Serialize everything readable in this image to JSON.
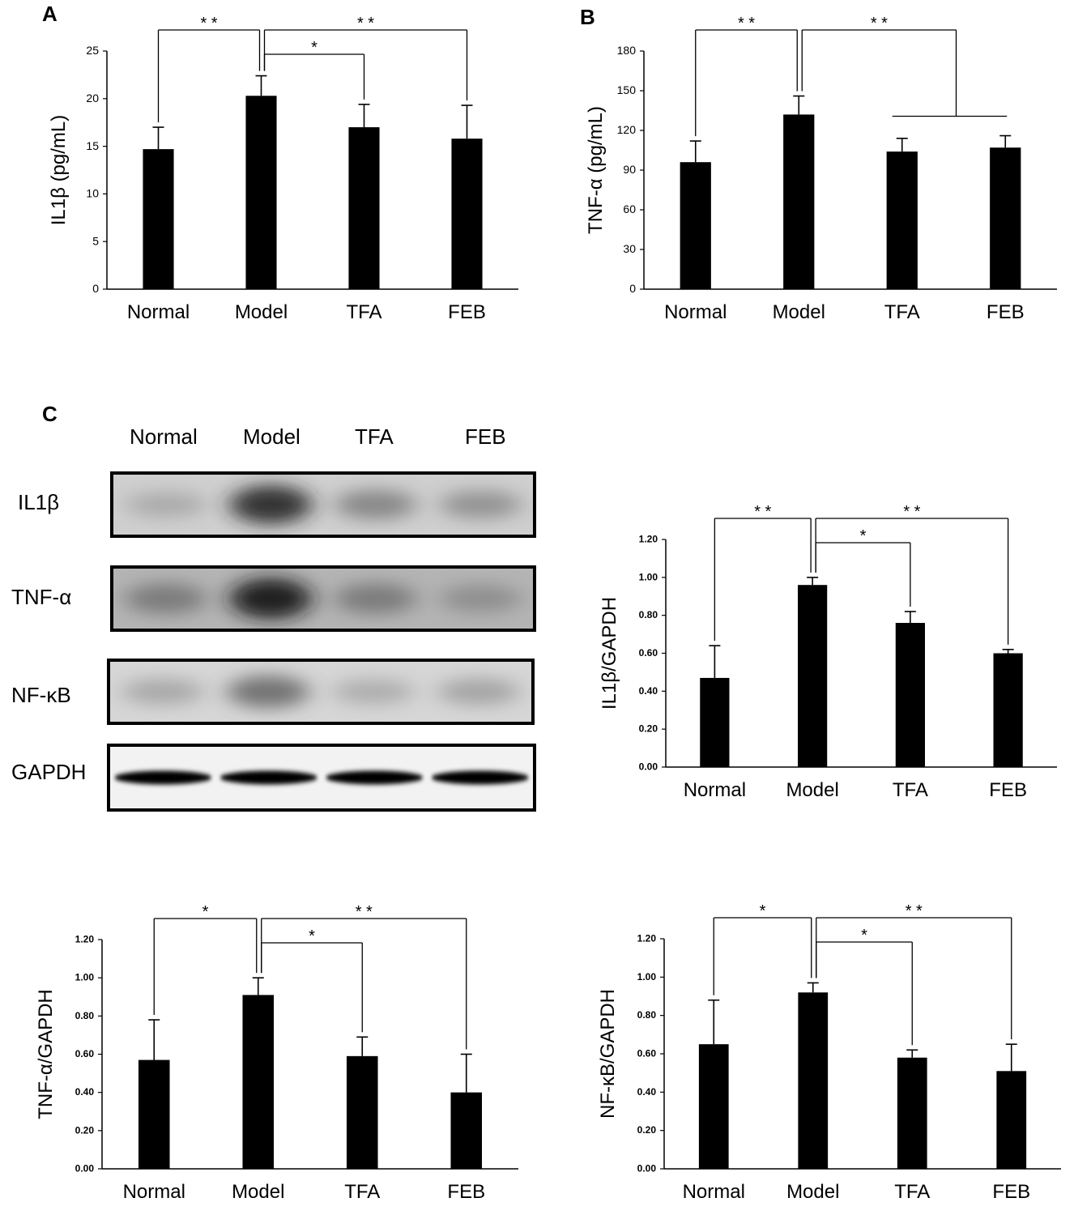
{
  "panels": {
    "a": "A",
    "b": "B",
    "c": "C"
  },
  "blot": {
    "lanes": [
      "Normal",
      "Model",
      "TFA",
      "FEB"
    ],
    "rows": [
      {
        "label": "IL1β",
        "intensity": [
          0.18,
          0.85,
          0.42,
          0.35
        ],
        "bg": "#cfcfcf"
      },
      {
        "label": "TNF-α",
        "intensity": [
          0.45,
          0.95,
          0.45,
          0.32
        ],
        "bg": "#b4b4b4"
      },
      {
        "label": "NF-κB",
        "intensity": [
          0.22,
          0.55,
          0.18,
          0.25
        ],
        "bg": "#d6d6d6"
      },
      {
        "label": "GAPDH",
        "intensity": [
          1.0,
          1.0,
          1.0,
          1.0
        ],
        "bg": "#f2f2f2"
      }
    ]
  },
  "chart_data": [
    {
      "id": "A",
      "type": "bar",
      "categories": [
        "Normal",
        "Model",
        "TFA",
        "FEB"
      ],
      "values": [
        14.7,
        20.3,
        17.0,
        15.8
      ],
      "errors": [
        2.3,
        2.1,
        2.4,
        3.5
      ],
      "ylabel": "IL1β  (pg/mL)",
      "ylim": [
        0,
        25
      ],
      "yticks": [
        "0",
        "5",
        "10",
        "15",
        "20",
        "25"
      ],
      "significance": [
        {
          "from": 1,
          "to": [
            0
          ],
          "label": "* *"
        },
        {
          "from": 1,
          "to": [
            2
          ],
          "label": "*"
        },
        {
          "from": 1,
          "to": [
            3
          ],
          "label": "* *"
        }
      ]
    },
    {
      "id": "B",
      "type": "bar",
      "categories": [
        "Normal",
        "Model",
        "TFA",
        "FEB"
      ],
      "values": [
        96,
        132,
        104,
        107
      ],
      "errors": [
        16,
        14,
        10,
        9
      ],
      "ylabel": "TNF-α  (pg/mL)",
      "ylim": [
        0,
        180
      ],
      "yticks": [
        "0",
        "30",
        "60",
        "90",
        "120",
        "150",
        "180"
      ],
      "significance": [
        {
          "from": 1,
          "to": [
            0
          ],
          "label": "* *"
        },
        {
          "from": 1,
          "to": [
            2,
            3
          ],
          "label": "* *"
        }
      ]
    },
    {
      "id": "C-IL1b",
      "type": "bar",
      "categories": [
        "Normal",
        "Model",
        "TFA",
        "FEB"
      ],
      "values": [
        0.47,
        0.96,
        0.76,
        0.6
      ],
      "errors": [
        0.17,
        0.04,
        0.06,
        0.02
      ],
      "ylabel": "IL1β/GAPDH",
      "ylim": [
        0,
        1.2
      ],
      "yticks": [
        "0.00",
        "0.20",
        "0.40",
        "0.60",
        "0.80",
        "1.00",
        "1.20"
      ],
      "significance": [
        {
          "from": 1,
          "to": [
            0
          ],
          "label": "* *"
        },
        {
          "from": 1,
          "to": [
            2
          ],
          "label": "*"
        },
        {
          "from": 1,
          "to": [
            3
          ],
          "label": "* *"
        }
      ]
    },
    {
      "id": "C-TNFa",
      "type": "bar",
      "categories": [
        "Normal",
        "Model",
        "TFA",
        "FEB"
      ],
      "values": [
        0.57,
        0.91,
        0.59,
        0.4
      ],
      "errors": [
        0.21,
        0.09,
        0.1,
        0.2
      ],
      "ylabel": "TNF-α/GAPDH",
      "ylim": [
        0,
        1.2
      ],
      "yticks": [
        "0.00",
        "0.20",
        "0.40",
        "0.60",
        "0.80",
        "1.00",
        "1.20"
      ],
      "significance": [
        {
          "from": 1,
          "to": [
            0
          ],
          "label": "*"
        },
        {
          "from": 1,
          "to": [
            2
          ],
          "label": "*"
        },
        {
          "from": 1,
          "to": [
            3
          ],
          "label": "* *"
        }
      ]
    },
    {
      "id": "C-NFkB",
      "type": "bar",
      "categories": [
        "Normal",
        "Model",
        "TFA",
        "FEB"
      ],
      "values": [
        0.65,
        0.92,
        0.58,
        0.51
      ],
      "errors": [
        0.23,
        0.05,
        0.04,
        0.14
      ],
      "ylabel": "NF-κB/GAPDH",
      "ylim": [
        0,
        1.2
      ],
      "yticks": [
        "0.00",
        "0.20",
        "0.40",
        "0.60",
        "0.80",
        "1.00",
        "1.20"
      ],
      "significance": [
        {
          "from": 1,
          "to": [
            0
          ],
          "label": "*"
        },
        {
          "from": 1,
          "to": [
            2
          ],
          "label": "*"
        },
        {
          "from": 1,
          "to": [
            3
          ],
          "label": "* *"
        }
      ]
    }
  ]
}
